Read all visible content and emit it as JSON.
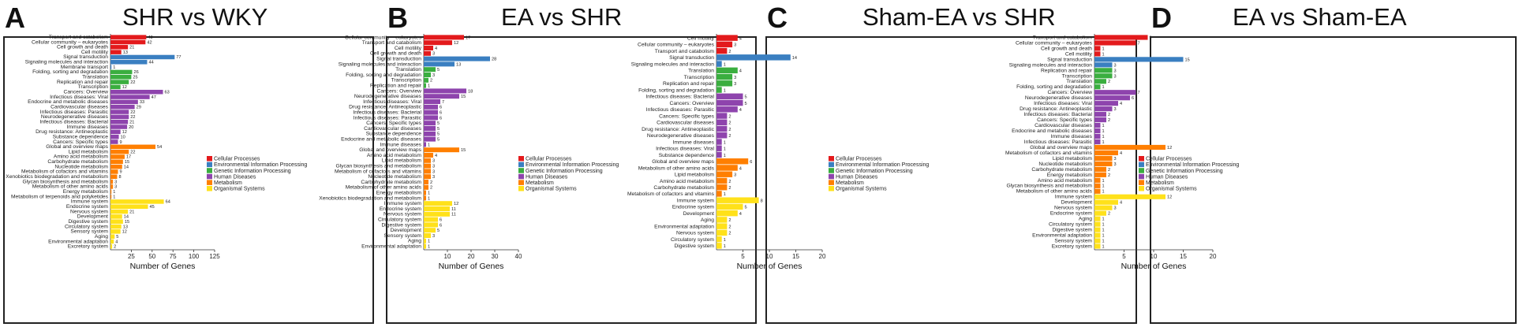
{
  "colors": {
    "Cellular Processes": "#e31a1c",
    "Environmental Information Processing": "#3a7fc1",
    "Genetic Information Processing": "#3aae3f",
    "Human Diseases": "#8e44ad",
    "Metabolism": "#ff7f00",
    "Organismal Systems": "#ffe11a"
  },
  "legend": [
    "Cellular Processes",
    "Environmental Information Processing",
    "Genetic Information Processing",
    "Human Diseases",
    "Metabolism",
    "Organismal Systems"
  ],
  "chart_data": [
    {
      "type": "bar",
      "letter": "A",
      "title": "SHR vs WKY",
      "xlabel": "Number of Genes",
      "xlim": [
        0,
        125
      ],
      "xticks": [
        25,
        50,
        75,
        100,
        125
      ],
      "categories": [
        "Transport and catabolism",
        "Cellular community – eukaryotes",
        "Cell growth and death",
        "Cell motility",
        "Signal transduction",
        "Signaling molecules and interaction",
        "Membrane transport",
        "Folding, sorting and degradation",
        "Translation",
        "Replication and repair",
        "Transcription",
        "Cancers: Overview",
        "Infectious diseases: Viral",
        "Endocrine and metabolic diseases",
        "Cardiovascular diseases",
        "Infectious diseases: Parasitic",
        "Neurodegenerative diseases",
        "Infectious diseases: Bacterial",
        "Immune diseases",
        "Drug resistance: Antineoplastic",
        "Substance dependence",
        "Cancers: Specific types",
        "Global and overview maps",
        "Lipid metabolism",
        "Amino acid metabolism",
        "Carbohydrate metabolism",
        "Nucleotide metabolism",
        "Metabolism of cofactors and vitamins",
        "Xenobiotics biodegradation and metabolism",
        "Glycan biosynthesis and metabolism",
        "Metabolism of other amino acids",
        "Energy metabolism",
        "Metabolism of terpenoids and polyketides",
        "Immune system",
        "Endocrine system",
        "Nervous system",
        "Development",
        "Digestive system",
        "Circulatory system",
        "Sensory system",
        "Aging",
        "Environmental adaptation",
        "Excretory system"
      ],
      "values": [
        43,
        42,
        21,
        13,
        77,
        44,
        1,
        26,
        25,
        22,
        12,
        63,
        47,
        33,
        29,
        22,
        22,
        21,
        20,
        12,
        10,
        9,
        54,
        22,
        17,
        15,
        14,
        9,
        8,
        3,
        3,
        1,
        1,
        64,
        45,
        21,
        14,
        15,
        13,
        12,
        5,
        4,
        2
      ],
      "groups": [
        "Cellular Processes",
        "Cellular Processes",
        "Cellular Processes",
        "Cellular Processes",
        "Environmental Information Processing",
        "Environmental Information Processing",
        "Environmental Information Processing",
        "Genetic Information Processing",
        "Genetic Information Processing",
        "Genetic Information Processing",
        "Genetic Information Processing",
        "Human Diseases",
        "Human Diseases",
        "Human Diseases",
        "Human Diseases",
        "Human Diseases",
        "Human Diseases",
        "Human Diseases",
        "Human Diseases",
        "Human Diseases",
        "Human Diseases",
        "Human Diseases",
        "Metabolism",
        "Metabolism",
        "Metabolism",
        "Metabolism",
        "Metabolism",
        "Metabolism",
        "Metabolism",
        "Metabolism",
        "Metabolism",
        "Metabolism",
        "Metabolism",
        "Organismal Systems",
        "Organismal Systems",
        "Organismal Systems",
        "Organismal Systems",
        "Organismal Systems",
        "Organismal Systems",
        "Organismal Systems",
        "Organismal Systems",
        "Organismal Systems",
        "Organismal Systems"
      ]
    },
    {
      "type": "bar",
      "letter": "B",
      "title": "EA vs SHR",
      "xlabel": "Number of Genes",
      "xlim": [
        0,
        40
      ],
      "xticks": [
        10,
        20,
        30,
        40
      ],
      "categories": [
        "Cellular community – eukaryotes",
        "Transport and catabolism",
        "Cell motility",
        "Cell growth and death",
        "Signal transduction",
        "Signaling molecules and interaction",
        "Translation",
        "Folding, sorting and degradation",
        "Transcription",
        "Replication and repair",
        "Cancers: Overview",
        "Neurodegenerative diseases",
        "Infectious diseases: Viral",
        "Drug resistance: Antineoplastic",
        "Infectious diseases: Bacterial",
        "Infectious diseases: Parasitic",
        "Cancers: Specific types",
        "Cardiovascular diseases",
        "Substance dependence",
        "Endocrine and metabolic diseases",
        "Immune diseases",
        "Global and overview maps",
        "Amino acid metabolism",
        "Lipid metabolism",
        "Glycan biosynthesis and metabolism",
        "Metabolism of cofactors and vitamins",
        "Nucleotide metabolism",
        "Carbohydrate metabolism",
        "Metabolism of other amino acids",
        "Energy metabolism",
        "Xenobiotics biodegradation and metabolism",
        "Immune system",
        "Endocrine system",
        "Nervous system",
        "Circulatory system",
        "Digestive system",
        "Development",
        "Sensory system",
        "Aging",
        "Environmental adaptation"
      ],
      "values": [
        17,
        12,
        4,
        3,
        28,
        13,
        5,
        3,
        2,
        1,
        18,
        15,
        7,
        6,
        6,
        6,
        5,
        5,
        5,
        5,
        1,
        15,
        4,
        3,
        3,
        3,
        3,
        2,
        2,
        1,
        1,
        12,
        11,
        11,
        6,
        6,
        5,
        3,
        1,
        1
      ],
      "groups": [
        "Cellular Processes",
        "Cellular Processes",
        "Cellular Processes",
        "Cellular Processes",
        "Environmental Information Processing",
        "Environmental Information Processing",
        "Genetic Information Processing",
        "Genetic Information Processing",
        "Genetic Information Processing",
        "Genetic Information Processing",
        "Human Diseases",
        "Human Diseases",
        "Human Diseases",
        "Human Diseases",
        "Human Diseases",
        "Human Diseases",
        "Human Diseases",
        "Human Diseases",
        "Human Diseases",
        "Human Diseases",
        "Human Diseases",
        "Metabolism",
        "Metabolism",
        "Metabolism",
        "Metabolism",
        "Metabolism",
        "Metabolism",
        "Metabolism",
        "Metabolism",
        "Metabolism",
        "Metabolism",
        "Organismal Systems",
        "Organismal Systems",
        "Organismal Systems",
        "Organismal Systems",
        "Organismal Systems",
        "Organismal Systems",
        "Organismal Systems",
        "Organismal Systems",
        "Organismal Systems"
      ]
    },
    {
      "type": "bar",
      "letter": "C",
      "title": "Sham-EA vs SHR",
      "xlabel": "Number of Genes",
      "xlim": [
        0,
        20
      ],
      "xticks": [
        5,
        10,
        15,
        20
      ],
      "categories": [
        "Cell motility",
        "Cellular community – eukaryotes",
        "Transport and catabolism",
        "Signal transduction",
        "Signaling molecules and interaction",
        "Translation",
        "Transcription",
        "Replication and repair",
        "Folding, sorting and degradation",
        "Infectious diseases: Bacterial",
        "Cancers: Overview",
        "Infectious diseases: Parasitic",
        "Cancers: Specific types",
        "Cardiovascular diseases",
        "Drug resistance: Antineoplastic",
        "Neurodegenerative diseases",
        "Immune diseases",
        "Infectious diseases: Viral",
        "Substance dependence",
        "Global and overview maps",
        "Metabolism of other amino acids",
        "Lipid metabolism",
        "Amino acid metabolism",
        "Carbohydrate metabolism",
        "Metabolism of cofactors and vitamins",
        "Immune system",
        "Endocrine system",
        "Development",
        "Aging",
        "Environmental adaptation",
        "Nervous system",
        "Circulatory system",
        "Digestive system"
      ],
      "values": [
        4,
        3,
        2,
        14,
        1,
        4,
        3,
        3,
        1,
        5,
        5,
        4,
        2,
        2,
        2,
        2,
        1,
        1,
        1,
        6,
        4,
        3,
        2,
        2,
        1,
        8,
        5,
        4,
        2,
        2,
        2,
        1,
        1
      ],
      "groups": [
        "Cellular Processes",
        "Cellular Processes",
        "Cellular Processes",
        "Environmental Information Processing",
        "Environmental Information Processing",
        "Genetic Information Processing",
        "Genetic Information Processing",
        "Genetic Information Processing",
        "Genetic Information Processing",
        "Human Diseases",
        "Human Diseases",
        "Human Diseases",
        "Human Diseases",
        "Human Diseases",
        "Human Diseases",
        "Human Diseases",
        "Human Diseases",
        "Human Diseases",
        "Human Diseases",
        "Metabolism",
        "Metabolism",
        "Metabolism",
        "Metabolism",
        "Metabolism",
        "Metabolism",
        "Organismal Systems",
        "Organismal Systems",
        "Organismal Systems",
        "Organismal Systems",
        "Organismal Systems",
        "Organismal Systems",
        "Organismal Systems",
        "Organismal Systems"
      ]
    },
    {
      "type": "bar",
      "letter": "D",
      "title": "EA vs Sham-EA",
      "xlabel": "Number of Genes",
      "xlim": [
        0,
        20
      ],
      "xticks": [
        5,
        10,
        15,
        20
      ],
      "categories": [
        "Transport and catabolism",
        "Cellular community – eukaryotes",
        "Cell growth and death",
        "Cell motility",
        "Signal transduction",
        "Signaling molecules and interaction",
        "Replication and repair",
        "Transcription",
        "Translation",
        "Folding, sorting and degradation",
        "Cancers: Overview",
        "Neurodegenerative diseases",
        "Infectious diseases: Viral",
        "Drug resistance: Antineoplastic",
        "Infectious diseases: Bacterial",
        "Cancers: Specific types",
        "Cardiovascular diseases",
        "Endocrine and metabolic diseases",
        "Immune diseases",
        "Infectious diseases: Parasitic",
        "Global and overview maps",
        "Metabolism of cofactors and vitamins",
        "Lipid metabolism",
        "Nucleotide metabolism",
        "Carbohydrate metabolism",
        "Energy metabolism",
        "Amino acid metabolism",
        "Glycan biosynthesis and metabolism",
        "Metabolism of other amino acids",
        "Immune system",
        "Development",
        "Nervous system",
        "Endocrine system",
        "Aging",
        "Circulatory system",
        "Digestive system",
        "Environmental adaptation",
        "Sensory system",
        "Excretory system"
      ],
      "values": [
        9,
        7,
        1,
        1,
        15,
        3,
        3,
        3,
        2,
        1,
        7,
        6,
        4,
        3,
        2,
        2,
        1,
        1,
        1,
        1,
        12,
        4,
        3,
        3,
        2,
        2,
        1,
        1,
        1,
        12,
        4,
        3,
        2,
        1,
        1,
        1,
        1,
        1,
        1
      ],
      "groups": [
        "Cellular Processes",
        "Cellular Processes",
        "Cellular Processes",
        "Cellular Processes",
        "Environmental Information Processing",
        "Environmental Information Processing",
        "Genetic Information Processing",
        "Genetic Information Processing",
        "Genetic Information Processing",
        "Genetic Information Processing",
        "Human Diseases",
        "Human Diseases",
        "Human Diseases",
        "Human Diseases",
        "Human Diseases",
        "Human Diseases",
        "Human Diseases",
        "Human Diseases",
        "Human Diseases",
        "Human Diseases",
        "Metabolism",
        "Metabolism",
        "Metabolism",
        "Metabolism",
        "Metabolism",
        "Metabolism",
        "Metabolism",
        "Metabolism",
        "Metabolism",
        "Organismal Systems",
        "Organismal Systems",
        "Organismal Systems",
        "Organismal Systems",
        "Organismal Systems",
        "Organismal Systems",
        "Organismal Systems",
        "Organismal Systems",
        "Organismal Systems",
        "Organismal Systems"
      ]
    }
  ]
}
